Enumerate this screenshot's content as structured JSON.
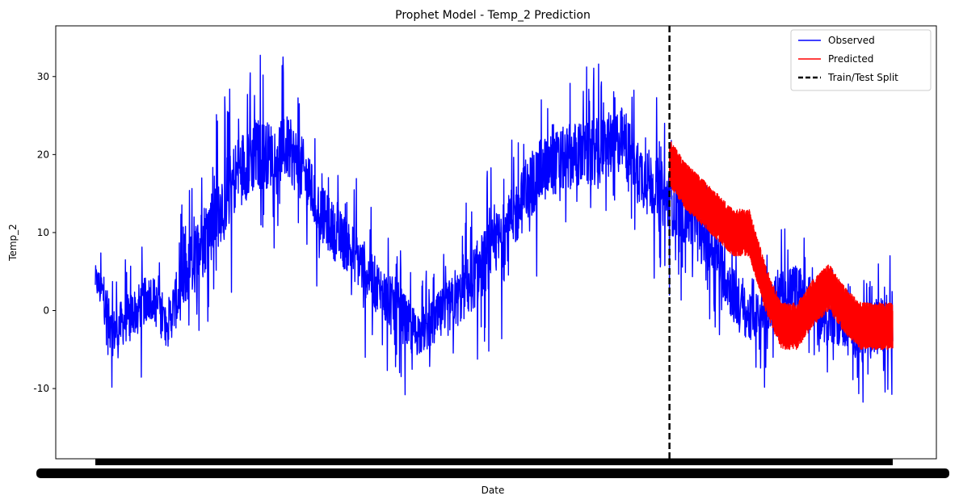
{
  "chart_data": {
    "type": "line",
    "title": "Prophet Model - Temp_2 Prediction",
    "xlabel": "Date",
    "ylabel": "Temp_2",
    "ylim": [
      -19.0,
      36.5
    ],
    "yticks": [
      -10,
      0,
      10,
      20,
      30
    ],
    "grid": false,
    "legend_position": "top-right",
    "colors": {
      "observed": "#0000ff",
      "predicted": "#ff0000",
      "split": "#000000"
    },
    "legend": [
      {
        "label": "Observed",
        "style": "solid",
        "color": "#0000ff"
      },
      {
        "label": "Predicted",
        "style": "solid",
        "color": "#ff0000"
      },
      {
        "label": "Train/Test Split",
        "style": "dashed",
        "color": "#000000"
      }
    ],
    "x_tick_labels_note": "x-axis tick labels are overplotted and illegible",
    "series": [
      {
        "name": "Observed",
        "color": "#0000ff",
        "x_fraction": [
          0.0,
          0.01,
          0.02,
          0.03,
          0.04,
          0.05,
          0.06,
          0.07,
          0.08,
          0.09,
          0.1,
          0.11,
          0.12,
          0.13,
          0.14,
          0.15,
          0.16,
          0.17,
          0.18,
          0.2,
          0.22,
          0.24,
          0.26,
          0.28,
          0.3,
          0.32,
          0.34,
          0.36,
          0.38,
          0.4,
          0.42,
          0.44,
          0.46,
          0.48,
          0.5,
          0.52,
          0.54,
          0.56,
          0.58,
          0.6,
          0.62,
          0.64,
          0.66,
          0.68,
          0.7,
          0.72,
          0.74,
          0.76,
          0.78,
          0.8,
          0.82,
          0.84,
          0.86,
          0.88,
          0.9,
          0.92,
          0.94,
          0.96,
          0.98,
          1.0
        ],
        "center": [
          4,
          2,
          -3,
          -2,
          -1,
          0,
          1,
          2,
          0,
          -2,
          1,
          3,
          6,
          8,
          10,
          12,
          14,
          16,
          18,
          20,
          20,
          21,
          18,
          13,
          10,
          8,
          5,
          2,
          0,
          -3,
          -2,
          0,
          2,
          5,
          8,
          11,
          15,
          18,
          19,
          20,
          20,
          21,
          22,
          18,
          16,
          14,
          12,
          10,
          7,
          2,
          -1,
          0,
          2,
          3,
          1,
          -1,
          -2,
          -3,
          -2,
          -1
        ],
        "amplitude": [
          3,
          5,
          5,
          5,
          5,
          5,
          5,
          5,
          5,
          5,
          6,
          6,
          7,
          8,
          8,
          8,
          8,
          8,
          8,
          8,
          7,
          7,
          7,
          6,
          6,
          6,
          6,
          6,
          6,
          5,
          5,
          6,
          6,
          7,
          7,
          7,
          7,
          7,
          7,
          7,
          7,
          7,
          7,
          7,
          7,
          7,
          6,
          6,
          6,
          6,
          5,
          5,
          5,
          5,
          5,
          5,
          5,
          6,
          6,
          6
        ]
      },
      {
        "name": "Predicted",
        "color": "#ff0000",
        "x_fraction_start": 0.72,
        "x_fraction_end": 1.0,
        "x_fraction": [
          0.72,
          0.74,
          0.76,
          0.78,
          0.8,
          0.82,
          0.84,
          0.86,
          0.88,
          0.9,
          0.92,
          0.94,
          0.96,
          0.98,
          1.0
        ],
        "center": [
          19,
          16,
          14,
          12,
          10,
          10,
          3,
          -2,
          -2,
          1,
          3,
          0,
          -2,
          -2,
          -2
        ],
        "amplitude": [
          3,
          3,
          3,
          3,
          3,
          3,
          3,
          3,
          3,
          3,
          3,
          3,
          3,
          3,
          3
        ]
      }
    ],
    "train_test_split_x_fraction": 0.72
  }
}
